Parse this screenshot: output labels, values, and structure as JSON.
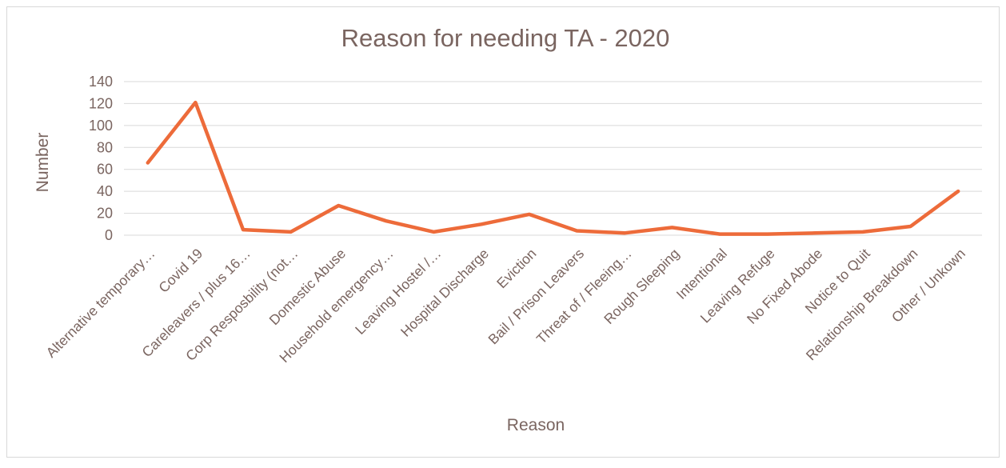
{
  "chart_data": {
    "type": "line",
    "title": "Reason for needing TA - 2020",
    "xlabel": "Reason",
    "ylabel": "Number",
    "ylim": [
      0,
      140
    ],
    "yticks": [
      0,
      20,
      40,
      60,
      80,
      100,
      120,
      140
    ],
    "grid": true,
    "legend": "none",
    "categories": [
      "Alternative temporary…",
      "Covid 19",
      "Careleavers / plus 16…",
      "Corp Resposbility (not…",
      "Domestic Abuse",
      "Household emergency…",
      "Leaving Hostel /…",
      "Hospital Discharge",
      "Eviction",
      "Bail / Prison Leavers",
      "Threat of / Fleeing…",
      "Rough Sleeping",
      "Intentional",
      "Leaving Refuge",
      "No Fixed Abode",
      "Notice to Quit",
      "Relationship Breakdown",
      "Other / Unkown"
    ],
    "values": [
      66,
      121,
      5,
      3,
      27,
      13,
      3,
      10,
      19,
      4,
      2,
      7,
      1,
      1,
      2,
      3,
      8,
      40
    ],
    "colors": {
      "line": "#ED6B3A",
      "text": "#7A6560",
      "grid": "#D9D9D9",
      "border": "#D9D9D9"
    }
  }
}
